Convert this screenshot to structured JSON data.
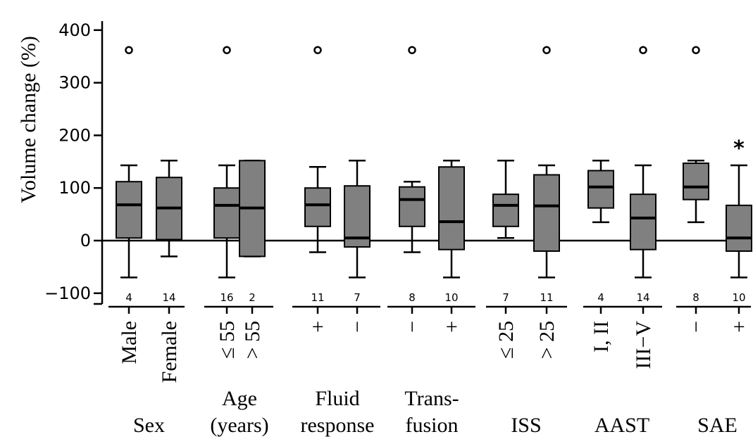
{
  "chart_data": {
    "type": "boxplot",
    "ylabel": "Volume change (%)",
    "ylim": [
      -125,
      420
    ],
    "yticks": [
      -100,
      0,
      100,
      200,
      300,
      400
    ],
    "reference_line": 0,
    "groups": [
      {
        "name": "Sex",
        "name_lines": [
          "Sex"
        ],
        "categories": [
          {
            "label": "Male",
            "n": 4,
            "whisker_low": -70,
            "q1": 5,
            "median": 68,
            "q3": 112,
            "whisker_high": 143,
            "outliers": [
              362
            ]
          },
          {
            "label": "Female",
            "n": 14,
            "whisker_low": -30,
            "q1": 2,
            "median": 62,
            "q3": 120,
            "whisker_high": 152,
            "outliers": []
          }
        ]
      },
      {
        "name": "Age (years)",
        "name_lines": [
          "Age",
          "(years)"
        ],
        "categories": [
          {
            "label": "≤ 55",
            "n": 16,
            "whisker_low": -70,
            "q1": 5,
            "median": 67,
            "q3": 100,
            "whisker_high": 143,
            "outliers": [
              362
            ]
          },
          {
            "label": "> 55",
            "n": 2,
            "whisker_low": -30,
            "q1": -30,
            "median": 62,
            "q3": 152,
            "whisker_high": 152,
            "outliers": []
          }
        ]
      },
      {
        "name": "Fluid response",
        "name_lines": [
          "Fluid",
          "response"
        ],
        "categories": [
          {
            "label": "+",
            "n": 11,
            "whisker_low": -22,
            "q1": 27,
            "median": 68,
            "q3": 100,
            "whisker_high": 140,
            "outliers": [
              362
            ]
          },
          {
            "label": "−",
            "n": 7,
            "whisker_low": -70,
            "q1": -12,
            "median": 5,
            "q3": 104,
            "whisker_high": 152,
            "outliers": []
          }
        ]
      },
      {
        "name": "Trans-fusion",
        "name_lines": [
          "Trans-",
          "fusion"
        ],
        "categories": [
          {
            "label": "−",
            "n": 8,
            "whisker_low": -22,
            "q1": 27,
            "median": 78,
            "q3": 102,
            "whisker_high": 112,
            "outliers": [
              362
            ]
          },
          {
            "label": "+",
            "n": 10,
            "whisker_low": -70,
            "q1": -17,
            "median": 36,
            "q3": 140,
            "whisker_high": 152,
            "outliers": []
          }
        ]
      },
      {
        "name": "ISS",
        "name_lines": [
          "ISS"
        ],
        "categories": [
          {
            "label": "≤ 25",
            "n": 7,
            "whisker_low": 5,
            "q1": 27,
            "median": 67,
            "q3": 88,
            "whisker_high": 152,
            "outliers": []
          },
          {
            "label": "> 25",
            "n": 11,
            "whisker_low": -70,
            "q1": -20,
            "median": 66,
            "q3": 125,
            "whisker_high": 143,
            "outliers": [
              362
            ]
          }
        ]
      },
      {
        "name": "AAST",
        "name_lines": [
          "AAST"
        ],
        "categories": [
          {
            "label": "I, II",
            "n": 4,
            "whisker_low": 35,
            "q1": 62,
            "median": 102,
            "q3": 133,
            "whisker_high": 152,
            "outliers": []
          },
          {
            "label": "III−V",
            "n": 14,
            "whisker_low": -70,
            "q1": -17,
            "median": 43,
            "q3": 88,
            "whisker_high": 143,
            "outliers": [
              362
            ]
          }
        ]
      },
      {
        "name": "SAE",
        "name_lines": [
          "SAE"
        ],
        "categories": [
          {
            "label": "−",
            "n": 8,
            "whisker_low": 35,
            "q1": 78,
            "median": 102,
            "q3": 147,
            "whisker_high": 152,
            "outliers": [
              362
            ]
          },
          {
            "label": "+",
            "n": 10,
            "whisker_low": -70,
            "q1": -20,
            "median": 5,
            "q3": 67,
            "whisker_high": 143,
            "outliers": [],
            "annotation": "*"
          }
        ]
      }
    ]
  }
}
